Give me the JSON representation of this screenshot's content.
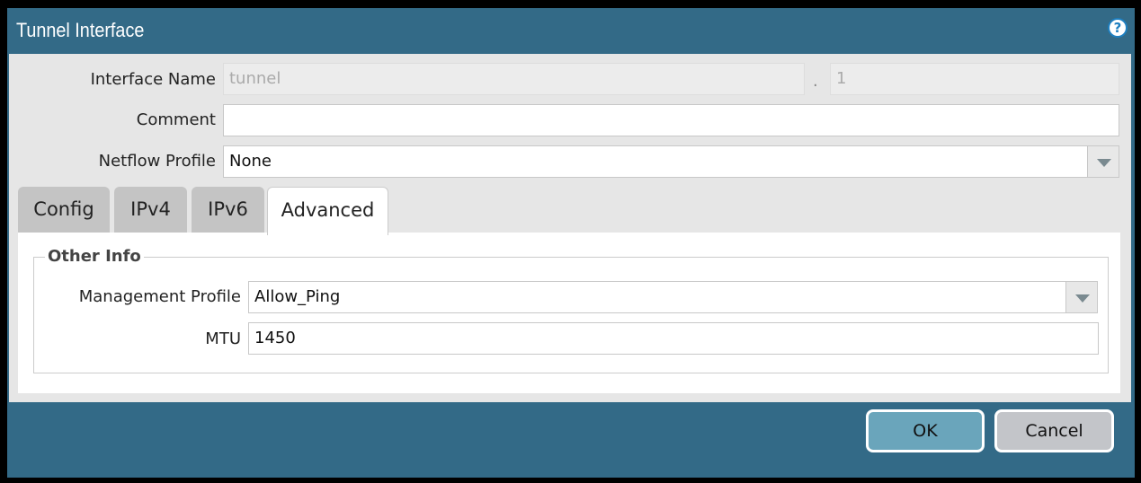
{
  "dialog": {
    "title": "Tunnel Interface",
    "help_icon": "help-icon"
  },
  "fields": {
    "interface_name_label": "Interface Name",
    "interface_name_value": "tunnel",
    "separator": ".",
    "interface_suffix": "1",
    "comment_label": "Comment",
    "comment_value": "",
    "netflow_label": "Netflow Profile",
    "netflow_value": "None"
  },
  "tabs": [
    {
      "label": "Config"
    },
    {
      "label": "IPv4"
    },
    {
      "label": "IPv6"
    },
    {
      "label": "Advanced",
      "active": true
    }
  ],
  "advanced": {
    "section_title": "Other Info",
    "mgmt_label": "Management Profile",
    "mgmt_value": "Allow_Ping",
    "mtu_label": "MTU",
    "mtu_value": "1450"
  },
  "buttons": {
    "ok": "OK",
    "cancel": "Cancel"
  },
  "colors": {
    "dialog_bg": "#336a87",
    "ok_bg": "#6aa5bb",
    "cancel_bg": "#c3c5c9"
  }
}
